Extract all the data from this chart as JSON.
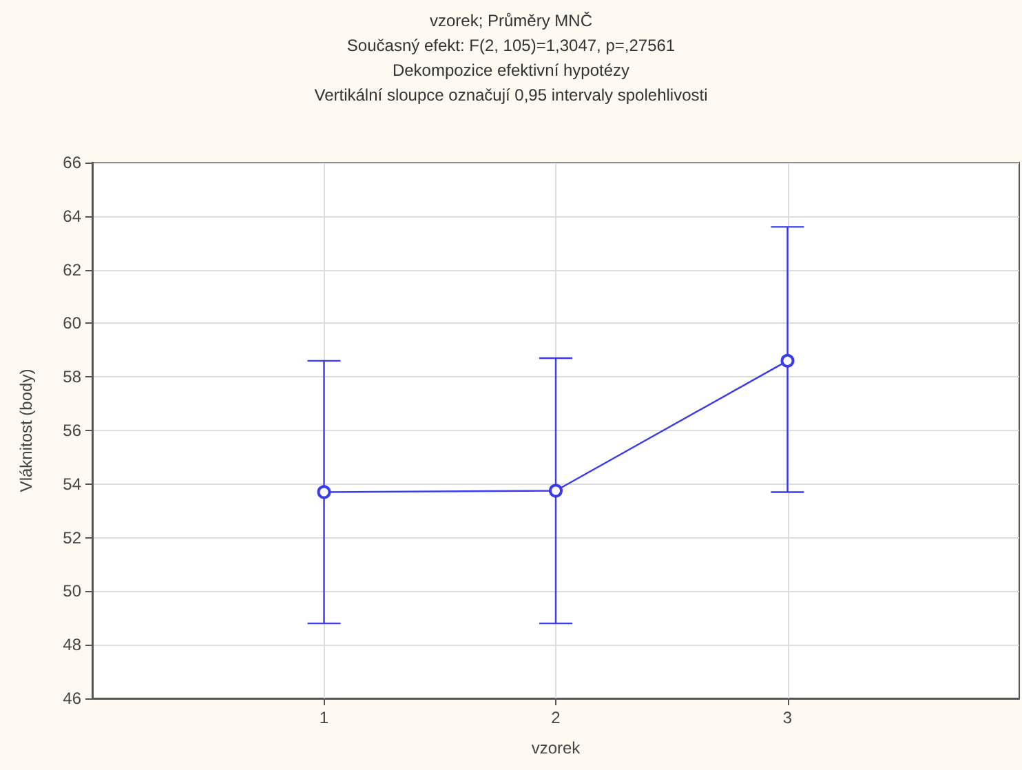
{
  "chart_data": {
    "type": "line",
    "title": "vzorek; Průměry MNČ",
    "subtitle": "Současný efekt: F(2, 105)=1,3047, p=,27561\nDekompozice efektivní hypotézy\nVertikální sloupce označují 0,95 intervaly spolehlivosti",
    "xlabel": "vzorek",
    "ylabel": "Vláknitost (body)",
    "x": [
      1,
      2,
      3
    ],
    "series": [
      {
        "color": "#3a3aee",
        "values": [
          53.7,
          53.75,
          58.6
        ],
        "errors": [
          [
            48.8,
            58.6
          ],
          [
            48.8,
            58.7
          ],
          [
            53.7,
            63.6
          ]
        ]
      }
    ],
    "xlim": [
      0,
      4
    ],
    "xticks": [
      1,
      2,
      3
    ],
    "ylim": [
      46,
      66
    ],
    "yticks": [
      46,
      48,
      50,
      52,
      54,
      56,
      58,
      60,
      62,
      64,
      66
    ],
    "grid": true,
    "marker": "circle",
    "line_style": "solid"
  }
}
